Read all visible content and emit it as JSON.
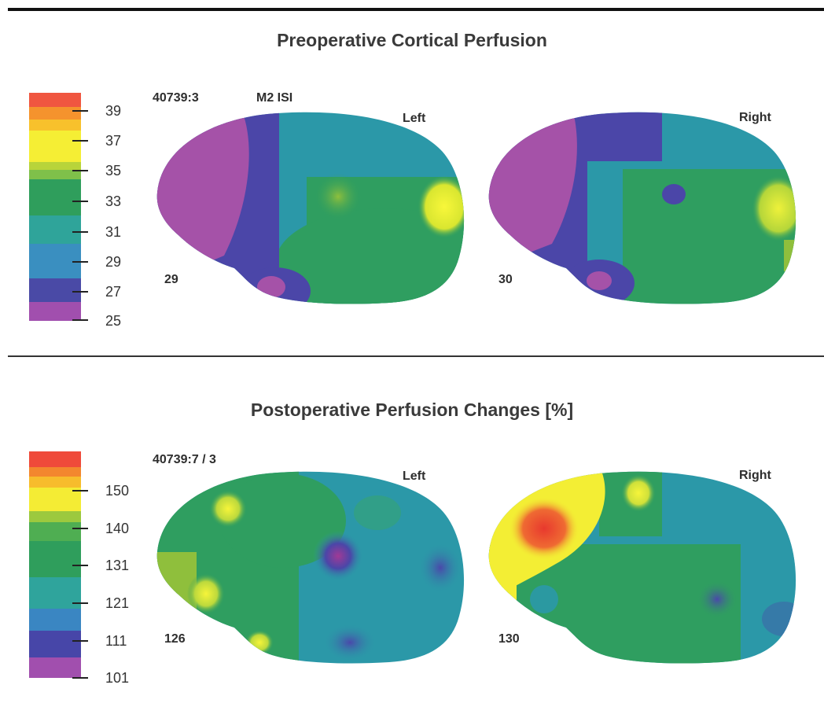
{
  "panels": [
    {
      "title": "Preoperative Cortical Perfusion",
      "scan_id": "40739:3",
      "sequence": "M2 ISI",
      "left_label": "Left",
      "right_label": "Right",
      "left_value": "29",
      "right_value": "30",
      "colorbar_ticks": [
        "39",
        "37",
        "35",
        "33",
        "31",
        "29",
        "27",
        "25"
      ]
    },
    {
      "title": "Postoperative Perfusion Changes [%]",
      "scan_id": "40739:7 / 3",
      "left_label": "Left",
      "right_label": "Right",
      "left_value": "126",
      "right_value": "130",
      "colorbar_ticks": [
        "150",
        "140",
        "131",
        "121",
        "111",
        "101"
      ]
    }
  ],
  "colors": {
    "scale": [
      "#ef4a3a",
      "#f5952c",
      "#f2dc2c",
      "#a9cc3a",
      "#2f9e5a",
      "#2fa59c",
      "#3d5fb4",
      "#9a4fb0"
    ],
    "magenta": "#a552a8",
    "purple": "#4b46a8",
    "teal": "#2c9aa6",
    "green": "#2f9a60",
    "yellow": "#f2ef2e",
    "red": "#e8392e"
  }
}
